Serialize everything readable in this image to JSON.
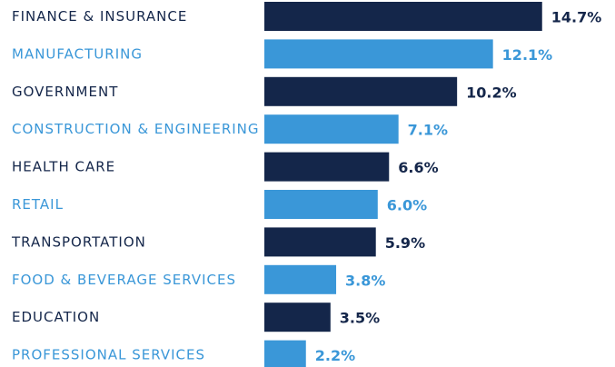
{
  "chart_data": {
    "type": "bar",
    "orientation": "horizontal",
    "categories": [
      "FINANCE & INSURANCE",
      "MANUFACTURING",
      "GOVERNMENT",
      "CONSTRUCTION & ENGINEERING",
      "HEALTH CARE",
      "RETAIL",
      "TRANSPORTATION",
      "FOOD & BEVERAGE SERVICES",
      "EDUCATION",
      "PROFESSIONAL SERVICES"
    ],
    "values": [
      14.7,
      12.1,
      10.2,
      7.1,
      6.6,
      6.0,
      5.9,
      3.8,
      3.5,
      2.2
    ],
    "value_labels": [
      "14.7%",
      "12.1%",
      "10.2%",
      "7.1%",
      "6.6%",
      "6.0%",
      "5.9%",
      "3.8%",
      "3.5%",
      "2.2%"
    ],
    "colors": [
      "#14264a",
      "#3a97d8",
      "#14264a",
      "#3a97d8",
      "#14264a",
      "#3a97d8",
      "#14264a",
      "#3a97d8",
      "#14264a",
      "#3a97d8"
    ]
  }
}
